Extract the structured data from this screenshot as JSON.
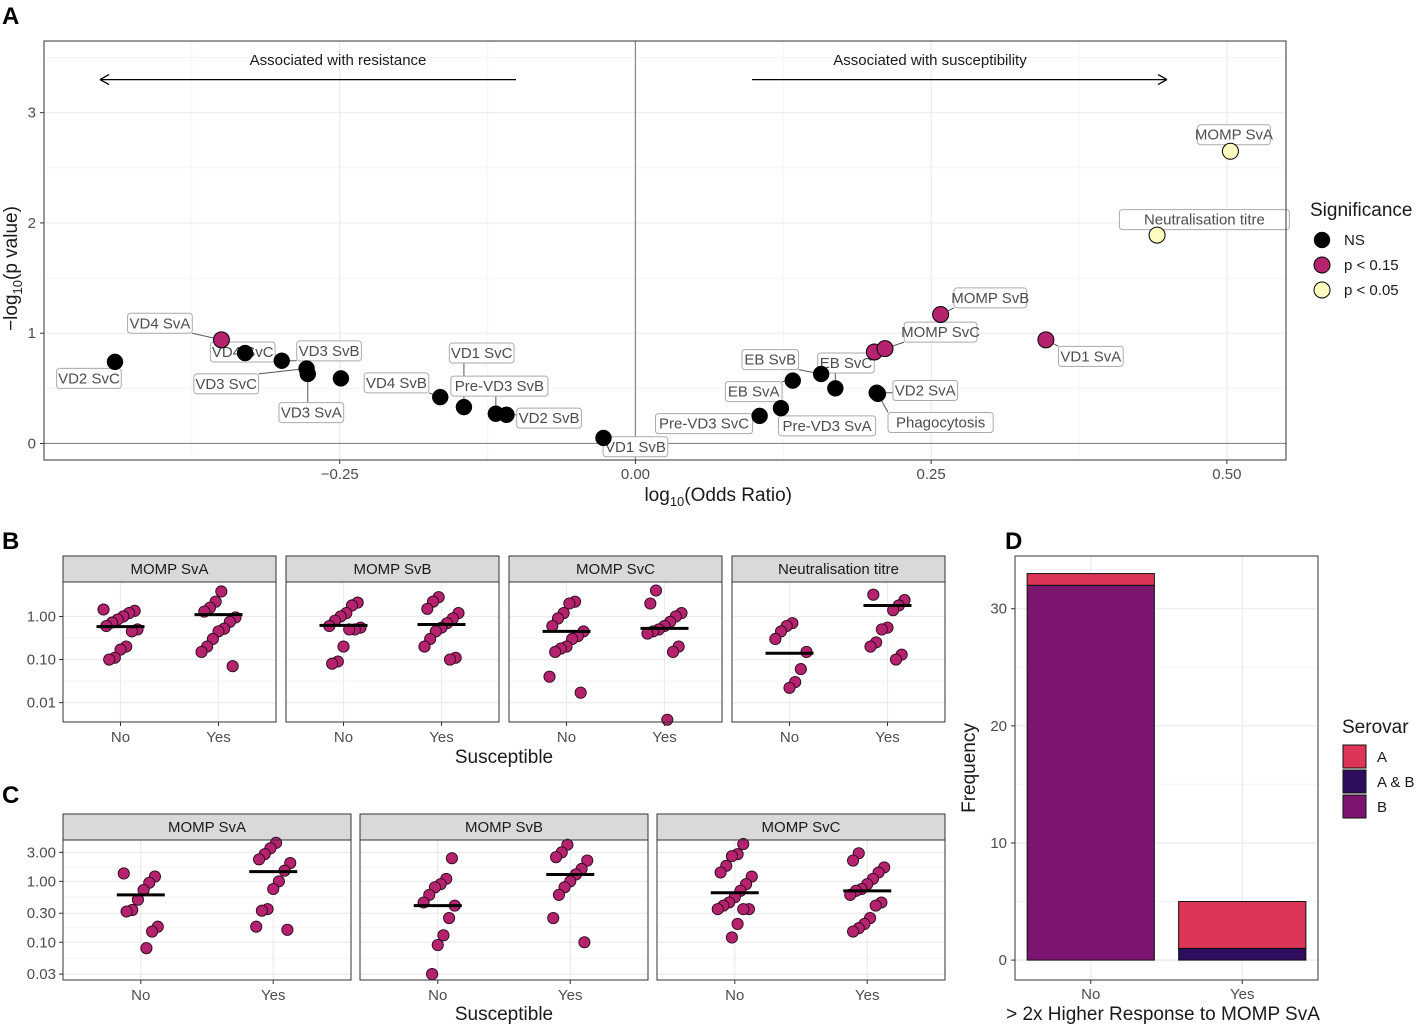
{
  "panel_letters": {
    "a": "A",
    "b": "B",
    "c": "C",
    "d": "D"
  },
  "colors": {
    "ns": "#000000",
    "p015": "#b5226e",
    "p005": "#fcfdbf",
    "dot": "#b5226e",
    "serovar_a": "#dd3557",
    "serovar_ab": "#2d0e5e",
    "serovar_b": "#7b1570"
  },
  "chart_data": [
    {
      "id": "A",
      "type": "scatter",
      "xlabel": "log10(Odds Ratio)",
      "ylabel": "-log10(p value)",
      "xlim": [
        -0.5,
        0.55
      ],
      "ylim": [
        -0.15,
        3.65
      ],
      "xticks": [
        {
          "v": -0.25,
          "t": "-0.25"
        },
        {
          "v": 0.0,
          "t": "0.00"
        },
        {
          "v": 0.25,
          "t": "0.25"
        },
        {
          "v": 0.5,
          "t": "0.50"
        }
      ],
      "yticks": [
        {
          "v": 0,
          "t": "0"
        },
        {
          "v": 1,
          "t": "1"
        },
        {
          "v": 2,
          "t": "2"
        },
        {
          "v": 3,
          "t": "3"
        }
      ],
      "annotations": {
        "left": "Associated with resistance",
        "right": "Associated with susceptibility"
      },
      "legend": {
        "title": "Significance",
        "items": [
          {
            "key": "ns",
            "label": "NS"
          },
          {
            "key": "p015",
            "label": "p < 0.15"
          },
          {
            "key": "p005",
            "label": "p < 0.05"
          }
        ]
      },
      "points": [
        {
          "label": "VD2 SvC",
          "x": -0.44,
          "y": 0.74,
          "sig": "ns",
          "lx": -0.462,
          "ly": 0.59
        },
        {
          "label": "VD4 SvA",
          "x": -0.35,
          "y": 0.94,
          "sig": "p015",
          "lx": -0.402,
          "ly": 1.09
        },
        {
          "label": "VD4 SvC",
          "x": -0.33,
          "y": 0.82,
          "sig": "ns",
          "lx": -0.332,
          "ly": 0.83
        },
        {
          "label": "VD3 SvB",
          "x": -0.299,
          "y": 0.75,
          "sig": "ns",
          "lx": -0.259,
          "ly": 0.84
        },
        {
          "label": "VD3 SvC",
          "x": -0.278,
          "y": 0.68,
          "sig": "ns",
          "lx": -0.346,
          "ly": 0.54
        },
        {
          "label": "VD3 SvA",
          "x": -0.277,
          "y": 0.63,
          "sig": "ns",
          "lx": -0.274,
          "ly": 0.28
        },
        {
          "label": "",
          "x": -0.249,
          "y": 0.59,
          "sig": "ns",
          "lx": 0,
          "ly": 0
        },
        {
          "label": "VD4 SvB",
          "x": -0.165,
          "y": 0.42,
          "sig": "ns",
          "lx": -0.202,
          "ly": 0.55
        },
        {
          "label": "VD1 SvC",
          "x": -0.145,
          "y": 0.33,
          "sig": "ns",
          "lx": -0.13,
          "ly": 0.82
        },
        {
          "label": "Pre-VD3 SvB",
          "x": -0.118,
          "y": 0.27,
          "sig": "ns",
          "lx": -0.115,
          "ly": 0.52
        },
        {
          "label": "VD2 SvB",
          "x": -0.109,
          "y": 0.26,
          "sig": "ns",
          "lx": -0.073,
          "ly": 0.23
        },
        {
          "label": "VD1 SvB",
          "x": -0.027,
          "y": 0.05,
          "sig": "ns",
          "lx": 0.0,
          "ly": -0.03
        },
        {
          "label": "Pre-VD3 SvC",
          "x": 0.105,
          "y": 0.25,
          "sig": "ns",
          "lx": 0.058,
          "ly": 0.18
        },
        {
          "label": "Pre-VD3 SvA",
          "x": 0.123,
          "y": 0.32,
          "sig": "ns",
          "lx": 0.162,
          "ly": 0.16
        },
        {
          "label": "EB SvA",
          "x": 0.133,
          "y": 0.57,
          "sig": "ns",
          "lx": 0.1,
          "ly": 0.47
        },
        {
          "label": "EB SvB",
          "x": 0.157,
          "y": 0.63,
          "sig": "ns",
          "lx": 0.114,
          "ly": 0.76
        },
        {
          "label": "EB SvC",
          "x": 0.169,
          "y": 0.5,
          "sig": "ns",
          "lx": 0.178,
          "ly": 0.73
        },
        {
          "label": "VD2 SvA",
          "x": 0.204,
          "y": 0.46,
          "sig": "ns",
          "lx": 0.245,
          "ly": 0.48
        },
        {
          "label": "Phagocytosis",
          "x": 0.205,
          "y": 0.45,
          "sig": "ns",
          "lx": 0.258,
          "ly": 0.19
        },
        {
          "label": "",
          "x": 0.202,
          "y": 0.83,
          "sig": "p015",
          "lx": 0,
          "ly": 0
        },
        {
          "label": "MOMP SvC",
          "x": 0.211,
          "y": 0.86,
          "sig": "p015",
          "lx": 0.258,
          "ly": 1.01
        },
        {
          "label": "MOMP SvB",
          "x": 0.258,
          "y": 1.17,
          "sig": "p015",
          "lx": 0.3,
          "ly": 1.32
        },
        {
          "label": "VD1 SvA",
          "x": 0.347,
          "y": 0.94,
          "sig": "p015",
          "lx": 0.385,
          "ly": 0.79
        },
        {
          "label": "Neutralisation titre",
          "x": 0.441,
          "y": 1.89,
          "sig": "p005",
          "lx": 0.481,
          "ly": 2.03
        },
        {
          "label": "MOMP SvA",
          "x": 0.503,
          "y": 2.65,
          "sig": "p005",
          "lx": 0.506,
          "ly": 2.8
        }
      ]
    },
    {
      "id": "B",
      "type": "scatter",
      "xlabel": "Susceptible",
      "categories": [
        "No",
        "Yes"
      ],
      "yscale": "log10",
      "ylim_log": [
        -2.45,
        0.8
      ],
      "yticks": [
        {
          "v": 1.0,
          "t": "1.00"
        },
        {
          "v": 0.1,
          "t": "0.10"
        },
        {
          "v": 0.01,
          "t": "0.01"
        }
      ],
      "facets": [
        {
          "title": "MOMP SvA",
          "medians": [
            0.58,
            1.1
          ],
          "No": [
            1.45,
            1.35,
            1.2,
            1.0,
            0.85,
            0.72,
            0.6,
            0.5,
            0.45,
            0.2,
            0.17,
            0.11,
            0.1
          ],
          "Yes": [
            3.8,
            2.2,
            1.6,
            1.3,
            0.95,
            0.75,
            0.52,
            0.45,
            0.3,
            0.2,
            0.15,
            0.07
          ]
        },
        {
          "title": "MOMP SvB",
          "medians": [
            0.62,
            0.65
          ],
          "No": [
            2.1,
            1.8,
            1.2,
            1.0,
            0.8,
            0.6,
            0.55,
            0.5,
            0.5,
            0.2,
            0.09,
            0.08
          ],
          "Yes": [
            2.8,
            2.2,
            1.5,
            1.2,
            0.9,
            0.7,
            0.55,
            0.45,
            0.3,
            0.2,
            0.11,
            0.1
          ]
        },
        {
          "title": "MOMP SvC",
          "medians": [
            0.45,
            0.53
          ],
          "No": [
            2.2,
            2.0,
            1.2,
            0.9,
            0.6,
            0.45,
            0.35,
            0.3,
            0.2,
            0.18,
            0.15,
            0.04,
            0.017
          ],
          "Yes": [
            4.0,
            2.0,
            1.2,
            1.0,
            0.75,
            0.6,
            0.5,
            0.45,
            0.4,
            0.2,
            0.15,
            0.004
          ]
        },
        {
          "title": "Neutralisation titre",
          "medians": [
            0.14,
            1.8
          ],
          "No": [
            0.7,
            0.6,
            0.45,
            0.3,
            0.15,
            0.06,
            0.03,
            0.022
          ],
          "Yes": [
            3.2,
            2.4,
            1.8,
            1.4,
            0.55,
            0.5,
            0.25,
            0.2,
            0.13,
            0.1
          ]
        }
      ]
    },
    {
      "id": "C",
      "type": "scatter",
      "xlabel": "Susceptible",
      "categories": [
        "No",
        "Yes"
      ],
      "yscale": "log10",
      "ylim_log": [
        -1.62,
        0.68
      ],
      "yticks": [
        {
          "v": 3.0,
          "t": "3.00"
        },
        {
          "v": 1.0,
          "t": "1.00"
        },
        {
          "v": 0.3,
          "t": "0.30"
        },
        {
          "v": 0.1,
          "t": "0.10"
        },
        {
          "v": 0.03,
          "t": "0.03"
        }
      ],
      "facets": [
        {
          "title": "MOMP SvA",
          "medians": [
            0.6,
            1.45
          ],
          "No": [
            1.35,
            1.2,
            0.95,
            0.72,
            0.5,
            0.34,
            0.32,
            0.18,
            0.15,
            0.08
          ],
          "Yes": [
            4.3,
            3.5,
            2.8,
            2.3,
            2.0,
            1.5,
            1.0,
            0.75,
            0.35,
            0.33,
            0.18,
            0.16
          ]
        },
        {
          "title": "MOMP SvB",
          "medians": [
            0.4,
            1.3
          ],
          "No": [
            2.4,
            1.1,
            0.9,
            0.8,
            0.6,
            0.45,
            0.4,
            0.25,
            0.13,
            0.09,
            0.03
          ],
          "Yes": [
            4.0,
            3.0,
            2.5,
            2.2,
            1.6,
            1.3,
            1.0,
            0.8,
            0.6,
            0.25,
            0.1
          ]
        },
        {
          "title": "MOMP SvC",
          "medians": [
            0.65,
            0.7
          ],
          "No": [
            4.1,
            2.8,
            2.6,
            1.8,
            1.4,
            1.2,
            0.9,
            0.7,
            0.55,
            0.45,
            0.4,
            0.35,
            0.35,
            0.35,
            0.2,
            0.12
          ],
          "Yes": [
            2.9,
            2.2,
            1.7,
            1.4,
            1.1,
            0.9,
            0.75,
            0.7,
            0.6,
            0.45,
            0.4,
            0.25,
            0.2,
            0.17,
            0.15
          ]
        }
      ]
    },
    {
      "id": "D",
      "type": "bar",
      "xlabel": "> 2x Higher Response to MOMP SvA",
      "ylabel": "Frequency",
      "categories": [
        "No",
        "Yes"
      ],
      "ylim": [
        -1.7,
        34.5
      ],
      "yticks": [
        {
          "v": 0,
          "t": "0"
        },
        {
          "v": 10,
          "t": "10"
        },
        {
          "v": 20,
          "t": "20"
        },
        {
          "v": 30,
          "t": "30"
        }
      ],
      "series": [
        {
          "name": "B",
          "key": "serovar_b",
          "values": [
            32,
            0
          ]
        },
        {
          "name": "A & B",
          "key": "serovar_ab",
          "values": [
            0,
            1
          ]
        },
        {
          "name": "A",
          "key": "serovar_a",
          "values": [
            1,
            4
          ]
        }
      ],
      "legend": {
        "title": "Serovar",
        "items": [
          {
            "key": "serovar_a",
            "label": "A"
          },
          {
            "key": "serovar_ab",
            "label": "A & B"
          },
          {
            "key": "serovar_b",
            "label": "B"
          }
        ]
      }
    }
  ]
}
